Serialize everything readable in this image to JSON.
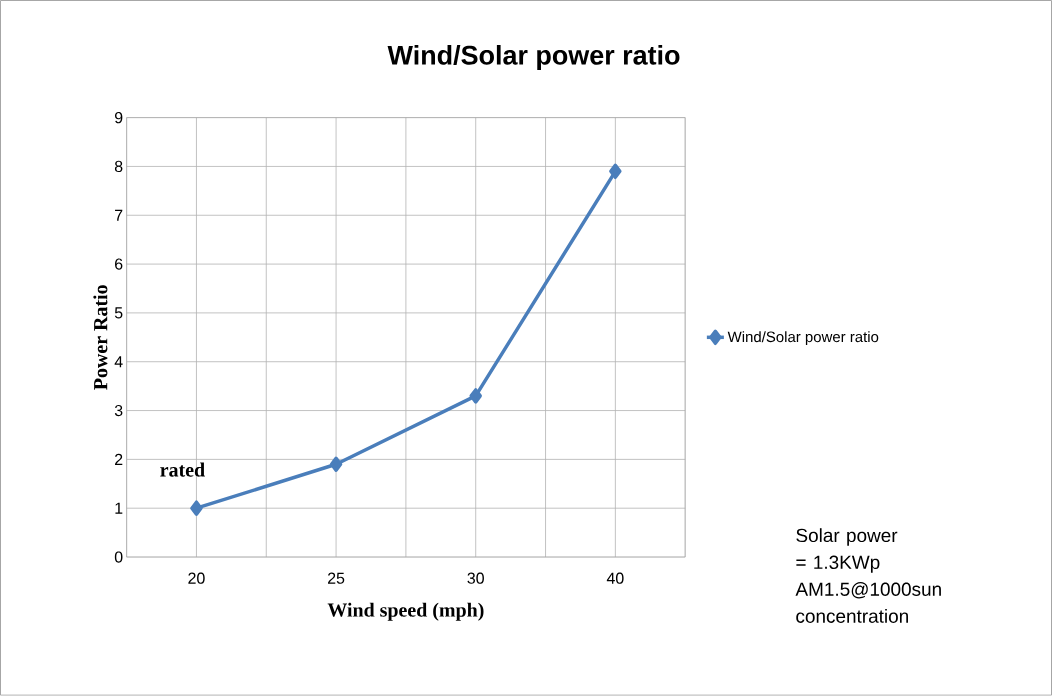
{
  "chart_data": {
    "type": "line",
    "title": "Wind/Solar power ratio",
    "xlabel": "Wind speed (mph)",
    "ylabel": "Power Ratio",
    "categories": [
      "20",
      "25",
      "30",
      "40"
    ],
    "series": [
      {
        "name": "Wind/Solar power ratio",
        "color": "#4a7ebb",
        "values": [
          1,
          1.9,
          3.3,
          7.9
        ]
      }
    ],
    "ylim": [
      0,
      9
    ],
    "yticks": [
      0,
      1,
      2,
      3,
      4,
      5,
      6,
      7,
      8,
      9
    ],
    "grid": true,
    "legend": "right",
    "marker": "diamond",
    "line_style": "solid",
    "annotations": [
      "rated",
      "Solar power = 1.3KWp AM1.5@1000sun concentration"
    ]
  }
}
